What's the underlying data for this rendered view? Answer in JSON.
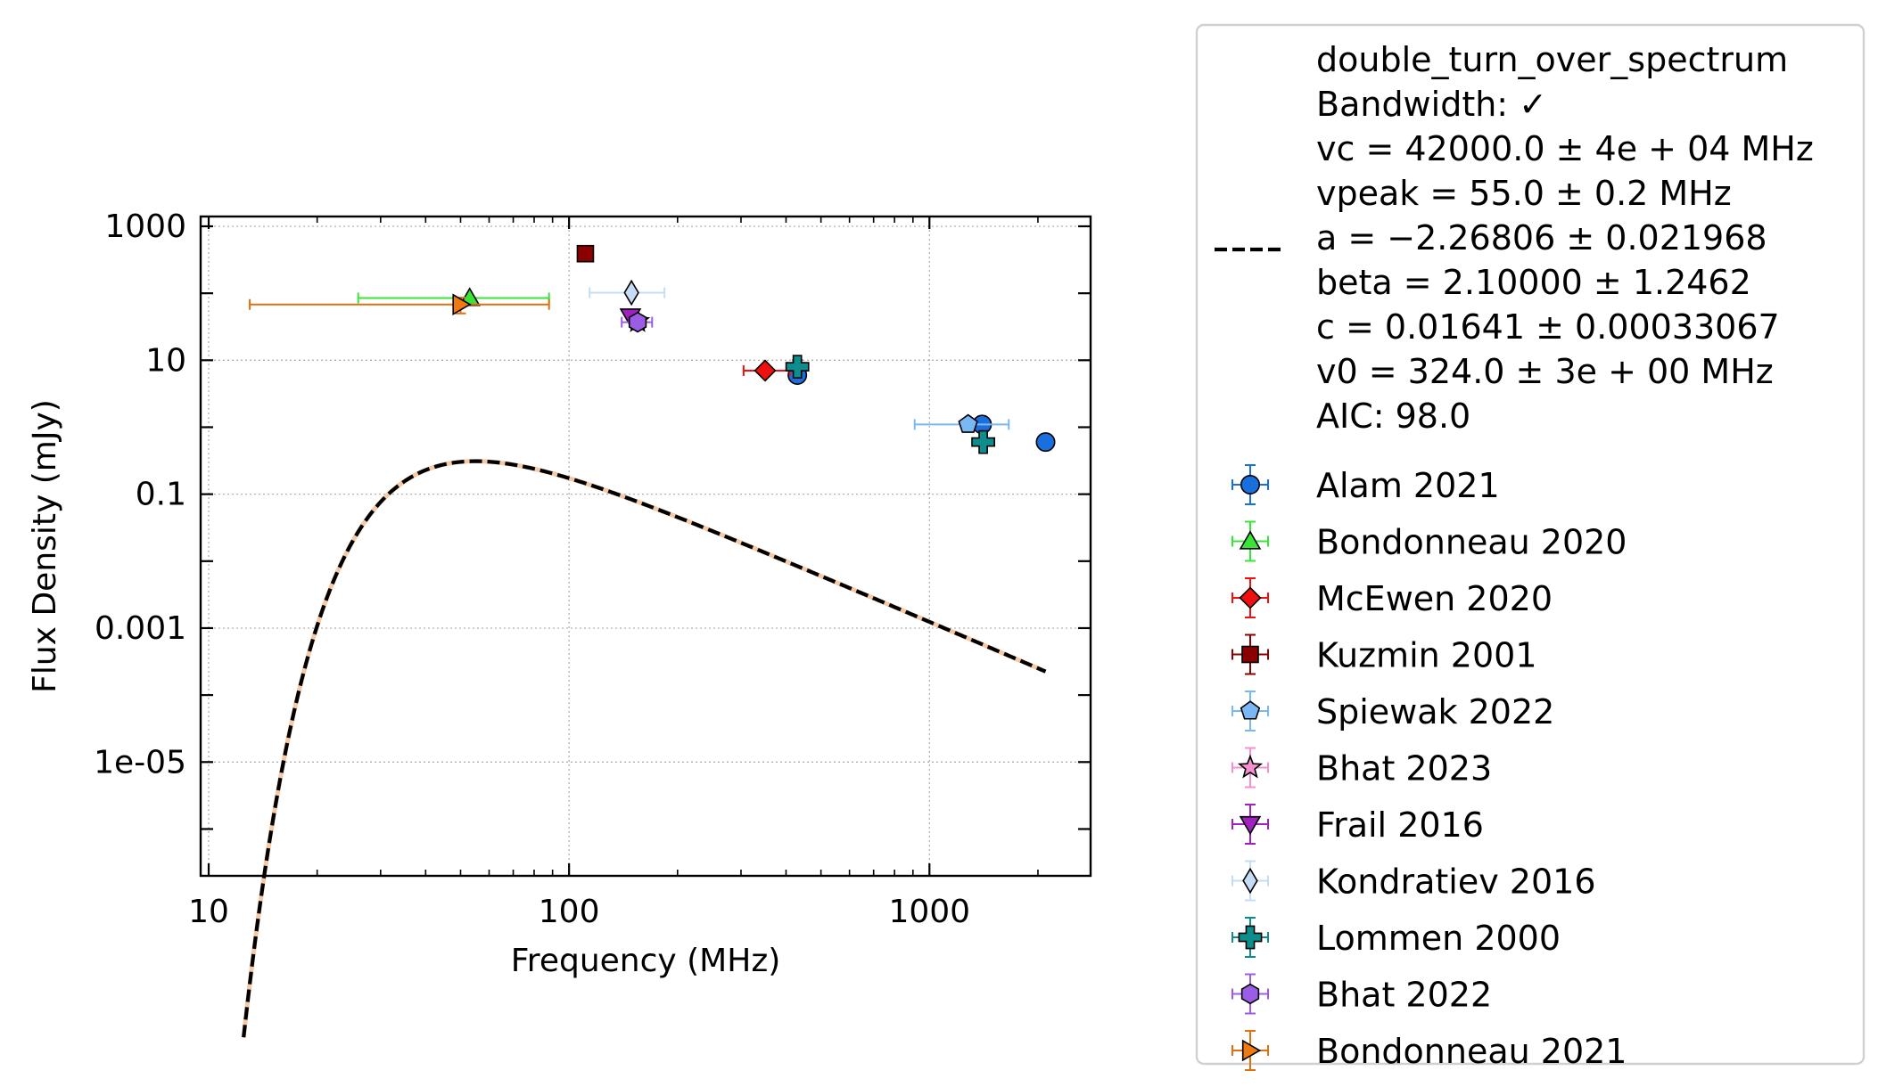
{
  "chart_data": {
    "type": "scatter",
    "xlabel": "Frequency (MHz)",
    "ylabel": "Flux Density (mJy)",
    "x_scale": "log",
    "y_scale": "log",
    "xlim": [
      9.5,
      2800
    ],
    "ylim": [
      2e-07,
      1400
    ],
    "x_ticks": [
      {
        "value": 10,
        "label": "10"
      },
      {
        "value": 100,
        "label": "100"
      },
      {
        "value": 1000,
        "label": "1000"
      }
    ],
    "y_ticks": [
      {
        "value": 1000,
        "label": "1000"
      },
      {
        "value": 10,
        "label": "10"
      },
      {
        "value": 0.1,
        "label": "0.1"
      },
      {
        "value": 0.001,
        "label": "0.001"
      },
      {
        "value": 1e-05,
        "label": "1e-05"
      }
    ],
    "grid": true,
    "legend_placement": "outside right",
    "fit": {
      "model": "double_turn_over_spectrum",
      "style": "dashed",
      "color": "#000000",
      "params": {
        "vc": 42000.0,
        "vpeak": 55.0,
        "a": -2.26806,
        "beta": 2.1,
        "c": 0.01641,
        "v0": 324.0
      },
      "x_range": [
        12.5,
        2100
      ],
      "legend_lines": [
        "double_turn_over_spectrum",
        "Bandwidth: ✓",
        "vc = 42000.0 ± 4e + 04 MHz",
        "vpeak = 55.0 ± 0.2 MHz",
        "a = −2.26806 ± 0.021968",
        "beta = 2.10000 ± 1.2462",
        "c = 0.01641 ± 0.00033067",
        "v0 = 324.0 ± 3e + 00 MHz",
        "AIC: 98.0"
      ]
    },
    "series": [
      {
        "name": "Alam 2021",
        "marker": "circle",
        "color": "#1a6fdf",
        "ecolor": "#1a6fdf",
        "points": [
          {
            "x": 430,
            "y": 6.0
          },
          {
            "x": 1400,
            "y": 1.1
          },
          {
            "x": 2100,
            "y": 0.6
          }
        ]
      },
      {
        "name": "Bondonneau 2020",
        "marker": "triangle-up",
        "color": "#37e437",
        "ecolor": "#37e437",
        "points": [
          {
            "x": 53,
            "y": 85,
            "xerr": [
              27,
              35
            ]
          }
        ]
      },
      {
        "name": "McEwen 2020",
        "marker": "diamond",
        "color": "#f01010",
        "ecolor": "#f01010",
        "points": [
          {
            "x": 350,
            "y": 7.0,
            "xerr": [
              45,
              60
            ]
          }
        ]
      },
      {
        "name": "Kuzmin 2001",
        "marker": "square",
        "color": "#8b0000",
        "ecolor": "#8b0000",
        "points": [
          {
            "x": 111,
            "y": 390,
            "yerr": [
              90,
              90
            ]
          }
        ]
      },
      {
        "name": "Spiewak 2022",
        "marker": "pentagon",
        "color": "#7ab8f5",
        "ecolor": "#7ab8f5",
        "points": [
          {
            "x": 1280,
            "y": 1.1,
            "xerr": [
              370,
              380
            ]
          }
        ]
      },
      {
        "name": "Bhat 2023",
        "marker": "star",
        "color": "#f58fcf",
        "ecolor": "#f58fcf",
        "points": [
          {
            "x": 155,
            "y": 38
          }
        ]
      },
      {
        "name": "Frail 2016",
        "marker": "triangle-down",
        "color": "#a020c0",
        "ecolor": "#a020c0",
        "points": [
          {
            "x": 148,
            "y": 45
          }
        ]
      },
      {
        "name": "Kondratiev 2016",
        "marker": "thin-diamond",
        "color": "#c6dcf4",
        "ecolor": "#c6dcf4",
        "points": [
          {
            "x": 149,
            "y": 102,
            "xerr": [
              35,
              35
            ]
          }
        ]
      },
      {
        "name": "Lommen 2000",
        "marker": "plus",
        "color": "#0f8c8c",
        "ecolor": "#0f8c8c",
        "points": [
          {
            "x": 430,
            "y": 8.0,
            "yerr": [
              2,
              2
            ]
          },
          {
            "x": 1410,
            "y": 0.6
          }
        ]
      },
      {
        "name": "Bhat 2022",
        "marker": "hexagon",
        "color": "#9b5de5",
        "ecolor": "#9b5de5",
        "points": [
          {
            "x": 155,
            "y": 37,
            "xerr": [
              15,
              15
            ]
          }
        ]
      },
      {
        "name": "Bondonneau 2021",
        "marker": "triangle-right",
        "color": "#ef7a12",
        "ecolor": "#e07010",
        "points": [
          {
            "x": 50,
            "y": 68,
            "xerr": [
              37,
              38
            ],
            "yerr": [
              18,
              18
            ]
          }
        ]
      }
    ]
  }
}
